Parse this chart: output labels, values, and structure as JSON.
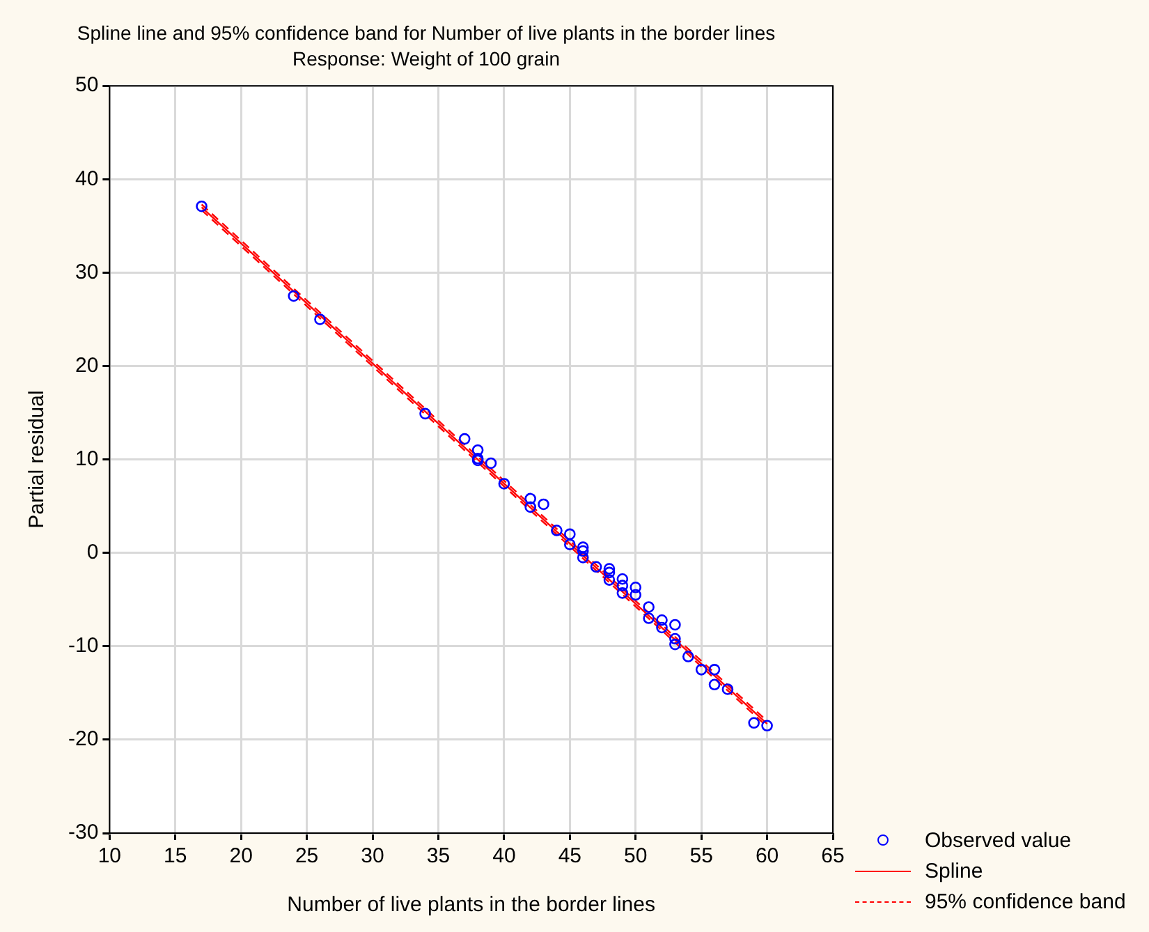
{
  "chart_data": {
    "type": "scatter",
    "title": "Spline line and 95% confidence band for Number of live plants in the border lines",
    "subtitle": "Response: Weight of 100 grain",
    "xlabel": "Number of live plants in the border lines",
    "ylabel": "Partial residual",
    "xlim": [
      10,
      65
    ],
    "xticks": [
      10,
      15,
      20,
      25,
      30,
      35,
      40,
      45,
      50,
      55,
      60,
      65
    ],
    "ylim": [
      -30,
      50
    ],
    "yticks": [
      -30,
      -20,
      -10,
      0,
      10,
      20,
      30,
      40,
      50
    ],
    "grid": true,
    "legend": "bottom right",
    "series": [
      {
        "name": "Observed value",
        "marker": "circle",
        "color": "#0000ff",
        "x": [
          17,
          24,
          26,
          34,
          37,
          38,
          38,
          38,
          39,
          40,
          42,
          42,
          43,
          44,
          45,
          45,
          46,
          46,
          46,
          47,
          48,
          48,
          48,
          49,
          49,
          49,
          50,
          50,
          51,
          51,
          52,
          52,
          53,
          53,
          53,
          54,
          55,
          56,
          56,
          57,
          59,
          60
        ],
        "values": [
          37.1,
          27.5,
          25.0,
          14.9,
          12.2,
          11.0,
          10.1,
          9.9,
          9.6,
          7.4,
          5.8,
          4.9,
          5.2,
          2.4,
          2.0,
          0.9,
          0.6,
          0.2,
          -0.5,
          -1.5,
          -1.7,
          -2.1,
          -2.9,
          -2.8,
          -3.5,
          -4.3,
          -3.7,
          -4.5,
          -5.8,
          -7.0,
          -7.2,
          -8.0,
          -7.7,
          -9.2,
          -9.8,
          -11.1,
          -12.5,
          -12.5,
          -14.1,
          -14.6,
          -18.2,
          -18.5
        ]
      },
      {
        "name": "Spline",
        "type": "line",
        "color": "#ff0000",
        "line_style": "solid",
        "marker": "none",
        "x": [
          17,
          60
        ],
        "values": [
          37.0,
          -18.3
        ]
      },
      {
        "name": "95% confidence band",
        "type": "line",
        "color": "#ff0000",
        "line_style": "dashed",
        "marker": "none",
        "x": [
          17,
          60
        ],
        "values": [
          37.3,
          -18.0
        ]
      },
      {
        "type": "line",
        "color": "#ff0000",
        "line_style": "dashed",
        "marker": "none",
        "x": [
          17,
          60
        ],
        "values": [
          36.7,
          -18.6
        ]
      }
    ]
  }
}
